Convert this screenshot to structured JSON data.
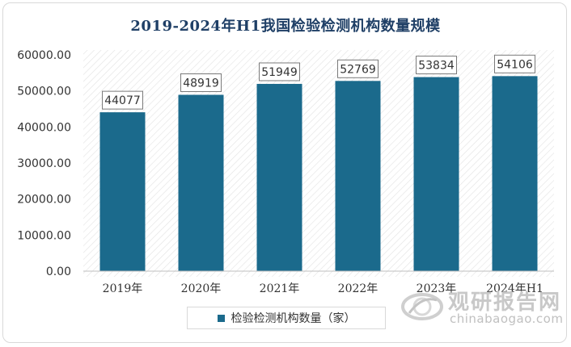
{
  "chart_data": {
    "type": "bar",
    "title": "2019-2024年H1我国检验检测机构数量规模",
    "categories": [
      "2019年",
      "2020年",
      "2021年",
      "2022年",
      "2023年",
      "2024年H1"
    ],
    "series": [
      {
        "name": "检验检测机构数量（家）",
        "values": [
          44077,
          48919,
          51949,
          52769,
          53834,
          54106
        ]
      }
    ],
    "data_labels": [
      "44077",
      "48919",
      "51949",
      "52769",
      "53834",
      "54106"
    ],
    "ylim": [
      0,
      60000
    ],
    "yticks": [
      0,
      10000,
      20000,
      30000,
      40000,
      50000,
      60000
    ],
    "ytick_labels": [
      "0.00",
      "10000.00",
      "20000.00",
      "30000.00",
      "40000.00",
      "50000.00",
      "60000.00"
    ],
    "xlabel": "",
    "ylabel": "",
    "grid": false,
    "legend_position": "bottom",
    "bar_color": "#1b6a8c",
    "background_pattern": "diagonal-hatch"
  },
  "watermark": {
    "brand": "观研报告网",
    "domain": "chinabaogao.com"
  }
}
